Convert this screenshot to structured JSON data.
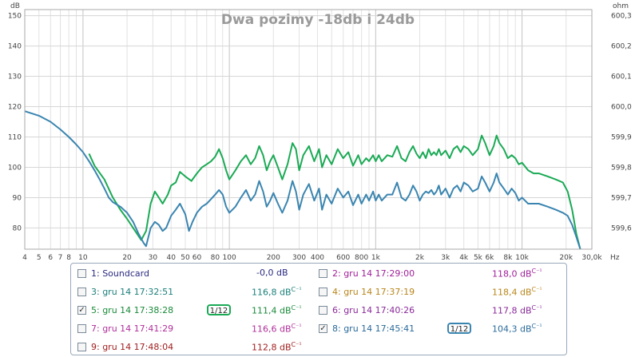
{
  "chart_data": {
    "type": "line",
    "title": "Dwa pozimy -18db i 24db",
    "y_left_unit": "dB",
    "y_right_unit": "ohm",
    "x_unit": "Hz",
    "x_scale": "log",
    "xlim": [
      4,
      30000
    ],
    "ylim": [
      73,
      152
    ],
    "x_ticks": [
      {
        "v": 4,
        "l": "4"
      },
      {
        "v": 5,
        "l": "5"
      },
      {
        "v": 6,
        "l": "6"
      },
      {
        "v": 7,
        "l": "7"
      },
      {
        "v": 8,
        "l": "8"
      },
      {
        "v": 10,
        "l": "10"
      },
      {
        "v": 20,
        "l": "20"
      },
      {
        "v": 30,
        "l": "30"
      },
      {
        "v": 40,
        "l": "40"
      },
      {
        "v": 50,
        "l": "50"
      },
      {
        "v": 60,
        "l": "60"
      },
      {
        "v": 80,
        "l": "80"
      },
      {
        "v": 100,
        "l": "100"
      },
      {
        "v": 200,
        "l": "200"
      },
      {
        "v": 300,
        "l": "300"
      },
      {
        "v": 400,
        "l": "400"
      },
      {
        "v": 600,
        "l": "600"
      },
      {
        "v": 800,
        "l": "800"
      },
      {
        "v": 1000,
        "l": "1k"
      },
      {
        "v": 2000,
        "l": "2k"
      },
      {
        "v": 3000,
        "l": "3k"
      },
      {
        "v": 4000,
        "l": "4k"
      },
      {
        "v": 5000,
        "l": "5k"
      },
      {
        "v": 6000,
        "l": "6k"
      },
      {
        "v": 8000,
        "l": "8k"
      },
      {
        "v": 10000,
        "l": "10k"
      },
      {
        "v": 20000,
        "l": "20k"
      },
      {
        "v": 30000,
        "l": "30,0k"
      }
    ],
    "y_ticks": [
      80,
      90,
      100,
      110,
      120,
      130,
      140,
      150
    ],
    "y_right_ticks": [
      "599,6",
      "599,7",
      "599,8",
      "599,9",
      "600,0",
      "600,1",
      "600,2",
      "600,3"
    ],
    "series": [
      {
        "name": "5: gru 14 17:38:28",
        "color": "#1aaa55",
        "points": [
          [
            11,
            104.5
          ],
          [
            12,
            100.5
          ],
          [
            14,
            96
          ],
          [
            16,
            90
          ],
          [
            18,
            86
          ],
          [
            20,
            83
          ],
          [
            22,
            80
          ],
          [
            25,
            76
          ],
          [
            27,
            79
          ],
          [
            29,
            88
          ],
          [
            31,
            92
          ],
          [
            33,
            90
          ],
          [
            35,
            88
          ],
          [
            38,
            91
          ],
          [
            40,
            94
          ],
          [
            43,
            95
          ],
          [
            46,
            98.5
          ],
          [
            50,
            97
          ],
          [
            55,
            95.5
          ],
          [
            60,
            98
          ],
          [
            65,
            100
          ],
          [
            70,
            101
          ],
          [
            75,
            102
          ],
          [
            80,
            103.5
          ],
          [
            85,
            106
          ],
          [
            90,
            103
          ],
          [
            95,
            99
          ],
          [
            100,
            96
          ],
          [
            110,
            99
          ],
          [
            120,
            102
          ],
          [
            130,
            104
          ],
          [
            140,
            101
          ],
          [
            150,
            103
          ],
          [
            160,
            107
          ],
          [
            170,
            104
          ],
          [
            180,
            99
          ],
          [
            190,
            102
          ],
          [
            200,
            104
          ],
          [
            215,
            100
          ],
          [
            230,
            96
          ],
          [
            250,
            101
          ],
          [
            270,
            108
          ],
          [
            285,
            106
          ],
          [
            300,
            99
          ],
          [
            320,
            104
          ],
          [
            350,
            107
          ],
          [
            380,
            102
          ],
          [
            410,
            106
          ],
          [
            430,
            100
          ],
          [
            460,
            104
          ],
          [
            500,
            101
          ],
          [
            550,
            106
          ],
          [
            600,
            103
          ],
          [
            650,
            105
          ],
          [
            700,
            100.5
          ],
          [
            760,
            104
          ],
          [
            800,
            101
          ],
          [
            860,
            103
          ],
          [
            900,
            102
          ],
          [
            960,
            104
          ],
          [
            1000,
            102
          ],
          [
            1050,
            104
          ],
          [
            1100,
            102
          ],
          [
            1200,
            104
          ],
          [
            1300,
            103.5
          ],
          [
            1400,
            107
          ],
          [
            1500,
            103
          ],
          [
            1600,
            102
          ],
          [
            1700,
            105
          ],
          [
            1800,
            107
          ],
          [
            1900,
            104.5
          ],
          [
            2000,
            103
          ],
          [
            2100,
            105
          ],
          [
            2200,
            103
          ],
          [
            2300,
            106
          ],
          [
            2400,
            104
          ],
          [
            2500,
            105
          ],
          [
            2600,
            104
          ],
          [
            2700,
            106
          ],
          [
            2800,
            104
          ],
          [
            3000,
            105.5
          ],
          [
            3200,
            103
          ],
          [
            3400,
            106
          ],
          [
            3600,
            107
          ],
          [
            3800,
            105
          ],
          [
            4000,
            107
          ],
          [
            4300,
            106
          ],
          [
            4600,
            104
          ],
          [
            5000,
            106
          ],
          [
            5300,
            110.5
          ],
          [
            5600,
            108
          ],
          [
            6000,
            104
          ],
          [
            6400,
            107
          ],
          [
            6700,
            110.5
          ],
          [
            7000,
            108
          ],
          [
            7500,
            106
          ],
          [
            8000,
            103
          ],
          [
            8500,
            104
          ],
          [
            9000,
            103
          ],
          [
            9500,
            101
          ],
          [
            10000,
            101.5
          ],
          [
            11000,
            99
          ],
          [
            12000,
            98
          ],
          [
            13000,
            98
          ],
          [
            15000,
            97
          ],
          [
            17000,
            96
          ],
          [
            19000,
            95
          ],
          [
            20500,
            92
          ],
          [
            22000,
            86
          ],
          [
            23500,
            78
          ],
          [
            25000,
            73
          ]
        ]
      },
      {
        "name": "8: gru 14 17:45:41",
        "color": "#3a85b0",
        "points": [
          [
            4,
            118.5
          ],
          [
            5,
            117
          ],
          [
            6,
            115
          ],
          [
            7,
            112.5
          ],
          [
            8,
            110
          ],
          [
            9,
            107.5
          ],
          [
            10,
            105
          ],
          [
            11,
            102
          ],
          [
            12,
            99
          ],
          [
            13,
            96
          ],
          [
            14,
            93
          ],
          [
            15,
            90
          ],
          [
            16,
            88.5
          ],
          [
            18,
            87
          ],
          [
            20,
            85
          ],
          [
            22,
            82
          ],
          [
            24,
            78
          ],
          [
            26,
            75
          ],
          [
            27,
            74
          ],
          [
            29,
            80
          ],
          [
            31,
            82
          ],
          [
            33,
            81
          ],
          [
            35,
            79
          ],
          [
            37,
            80
          ],
          [
            40,
            84
          ],
          [
            43,
            86
          ],
          [
            46,
            88
          ],
          [
            50,
            84.5
          ],
          [
            53,
            79
          ],
          [
            56,
            82
          ],
          [
            60,
            85
          ],
          [
            65,
            87
          ],
          [
            70,
            88
          ],
          [
            75,
            89.5
          ],
          [
            80,
            91
          ],
          [
            85,
            92.5
          ],
          [
            90,
            91
          ],
          [
            95,
            87
          ],
          [
            100,
            85
          ],
          [
            110,
            87
          ],
          [
            120,
            90
          ],
          [
            130,
            92.5
          ],
          [
            140,
            89
          ],
          [
            150,
            91
          ],
          [
            160,
            95.5
          ],
          [
            170,
            92
          ],
          [
            180,
            87
          ],
          [
            190,
            89
          ],
          [
            200,
            91.5
          ],
          [
            215,
            88
          ],
          [
            230,
            85
          ],
          [
            250,
            89
          ],
          [
            270,
            95.5
          ],
          [
            285,
            92
          ],
          [
            300,
            86
          ],
          [
            320,
            91
          ],
          [
            350,
            94.5
          ],
          [
            380,
            89
          ],
          [
            410,
            93
          ],
          [
            430,
            86
          ],
          [
            460,
            91
          ],
          [
            500,
            88
          ],
          [
            550,
            93
          ],
          [
            600,
            90
          ],
          [
            650,
            92
          ],
          [
            700,
            87.5
          ],
          [
            760,
            91
          ],
          [
            800,
            88
          ],
          [
            860,
            91
          ],
          [
            900,
            89
          ],
          [
            960,
            92
          ],
          [
            1000,
            89
          ],
          [
            1050,
            91
          ],
          [
            1100,
            89
          ],
          [
            1200,
            91
          ],
          [
            1300,
            91
          ],
          [
            1400,
            95
          ],
          [
            1500,
            90
          ],
          [
            1600,
            89
          ],
          [
            1700,
            91
          ],
          [
            1800,
            94
          ],
          [
            1900,
            92
          ],
          [
            2000,
            89
          ],
          [
            2100,
            91
          ],
          [
            2200,
            92
          ],
          [
            2300,
            91.5
          ],
          [
            2400,
            92.5
          ],
          [
            2500,
            91
          ],
          [
            2600,
            92
          ],
          [
            2700,
            94
          ],
          [
            2800,
            91
          ],
          [
            3000,
            93
          ],
          [
            3200,
            90
          ],
          [
            3400,
            93
          ],
          [
            3600,
            94
          ],
          [
            3800,
            92
          ],
          [
            4000,
            95
          ],
          [
            4300,
            94
          ],
          [
            4600,
            92
          ],
          [
            5000,
            93
          ],
          [
            5300,
            97
          ],
          [
            5600,
            95
          ],
          [
            6000,
            92
          ],
          [
            6400,
            95
          ],
          [
            6700,
            98
          ],
          [
            7000,
            95
          ],
          [
            7500,
            93
          ],
          [
            8000,
            91
          ],
          [
            8500,
            93
          ],
          [
            9000,
            91.5
          ],
          [
            9500,
            89
          ],
          [
            10000,
            90
          ],
          [
            11000,
            88
          ],
          [
            12000,
            88
          ],
          [
            13000,
            88
          ],
          [
            15000,
            87
          ],
          [
            17000,
            86
          ],
          [
            19000,
            85
          ],
          [
            20500,
            84
          ],
          [
            22000,
            81
          ],
          [
            23500,
            77
          ],
          [
            25000,
            73
          ]
        ]
      }
    ]
  },
  "legend": {
    "items": [
      {
        "label": "1: Soundcard",
        "value": "-0,0 dB",
        "sup": "",
        "checked": false,
        "color": "#2a2a80",
        "smoothing": ""
      },
      {
        "label": "2: gru 14 17:29:00",
        "value": "118,0 dB",
        "sup": "C⁻¹",
        "checked": false,
        "color": "#a0209a",
        "smoothing": ""
      },
      {
        "label": "3: gru 14 17:32:51",
        "value": "116,8 dB",
        "sup": "C⁻¹",
        "checked": false,
        "color": "#1a7f7a",
        "smoothing": ""
      },
      {
        "label": "4: gru 14 17:37:19",
        "value": "118,4 dB",
        "sup": "C⁻¹",
        "checked": false,
        "color": "#b8861b",
        "smoothing": ""
      },
      {
        "label": "5: gru 14 17:38:28",
        "value": "111,4 dB",
        "sup": "C⁻¹",
        "checked": true,
        "color": "#1a8a3a",
        "smoothing": "1/12"
      },
      {
        "label": "6: gru 14 17:40:26",
        "value": "117,8 dB",
        "sup": "C⁻¹",
        "checked": false,
        "color": "#8a2a9a",
        "smoothing": ""
      },
      {
        "label": "7: gru 14 17:41:29",
        "value": "116,6 dB",
        "sup": "C⁻¹",
        "checked": false,
        "color": "#b0309a",
        "smoothing": ""
      },
      {
        "label": "8: gru 14 17:45:41",
        "value": "104,3 dB",
        "sup": "C⁻¹",
        "checked": true,
        "color": "#2a6a9a",
        "smoothing": "1/12"
      },
      {
        "label": "9: gru 14 17:48:04",
        "value": "112,8 dB",
        "sup": "C⁻¹",
        "checked": false,
        "color": "#a02020",
        "smoothing": ""
      }
    ]
  }
}
